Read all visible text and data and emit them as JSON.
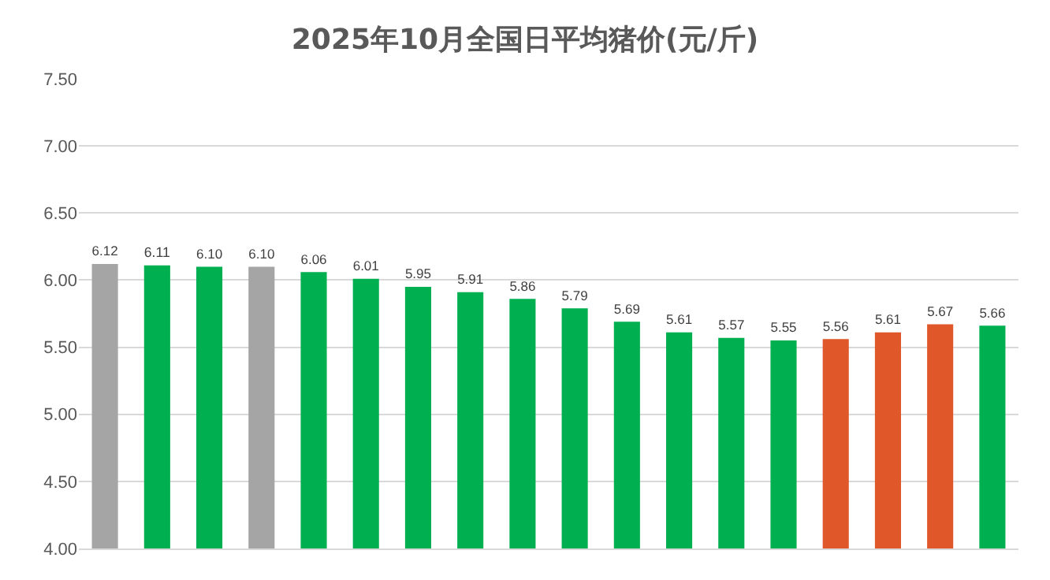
{
  "chart_data": {
    "type": "bar",
    "title": "2025年10月全国日平均猪价(元/斤)",
    "categories": [
      null,
      null,
      null,
      null,
      null,
      null,
      null,
      null,
      null,
      null,
      null,
      null,
      null,
      null,
      null,
      null,
      null,
      null
    ],
    "values": [
      6.12,
      6.11,
      6.1,
      6.1,
      6.06,
      6.01,
      5.95,
      5.91,
      5.86,
      5.79,
      5.69,
      5.61,
      5.57,
      5.55,
      5.56,
      5.61,
      5.67,
      5.66
    ],
    "value_labels": [
      "6.12",
      "6.11",
      "6.10",
      "6.10",
      "6.06",
      "6.01",
      "5.95",
      "5.91",
      "5.86",
      "5.79",
      "5.69",
      "5.61",
      "5.57",
      "5.55",
      "5.56",
      "5.61",
      "5.67",
      "5.66"
    ],
    "colors": [
      "#a5a5a5",
      "#00b050",
      "#00b050",
      "#a5a5a5",
      "#00b050",
      "#00b050",
      "#00b050",
      "#00b050",
      "#00b050",
      "#00b050",
      "#00b050",
      "#00b050",
      "#00b050",
      "#00b050",
      "#e0582a",
      "#e0582a",
      "#e0582a",
      "#00b050"
    ],
    "ylim": [
      4.0,
      7.5
    ],
    "yticks": [
      {
        "value": 4.0,
        "label": "4.00"
      },
      {
        "value": 4.5,
        "label": "4.50"
      },
      {
        "value": 5.0,
        "label": "5.00"
      },
      {
        "value": 5.5,
        "label": "5.50"
      },
      {
        "value": 6.0,
        "label": "6.00"
      },
      {
        "value": 6.5,
        "label": "6.50"
      },
      {
        "value": 7.0,
        "label": "7.00"
      },
      {
        "value": 7.5,
        "label": "7.50"
      }
    ],
    "grid": "y"
  }
}
